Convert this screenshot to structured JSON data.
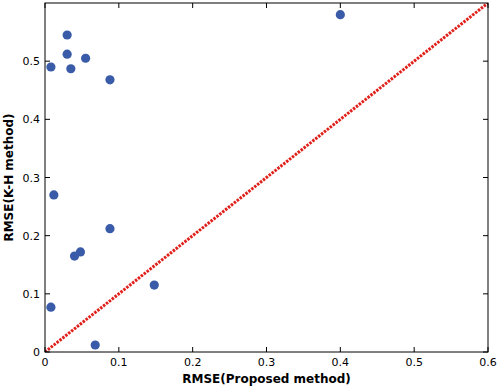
{
  "chart_data": {
    "type": "scatter",
    "xlabel": "RMSE(Proposed method)",
    "ylabel": "RMSE(K-H method)",
    "xlim": [
      0,
      0.6
    ],
    "ylim": [
      0,
      0.6
    ],
    "xticks": [
      0,
      0.1,
      0.2,
      0.3,
      0.4,
      0.5,
      0.6
    ],
    "yticks": [
      0,
      0.1,
      0.2,
      0.3,
      0.4,
      0.5
    ],
    "grid": false,
    "series": [
      {
        "type": "scatter",
        "color": "#3a5ba8",
        "marker": "circle",
        "x": [
          0.03,
          0.03,
          0.035,
          0.008,
          0.055,
          0.088,
          0.4,
          0.012,
          0.088,
          0.048,
          0.04,
          0.148,
          0.008,
          0.068
        ],
        "values": [
          0.545,
          0.512,
          0.487,
          0.49,
          0.505,
          0.468,
          0.58,
          0.27,
          0.212,
          0.172,
          0.165,
          0.115,
          0.077,
          0.012
        ]
      },
      {
        "type": "line",
        "color": "#e0201b",
        "line_style": "dotted",
        "x": [
          0,
          0.6
        ],
        "values": [
          0,
          0.6
        ]
      }
    ]
  }
}
